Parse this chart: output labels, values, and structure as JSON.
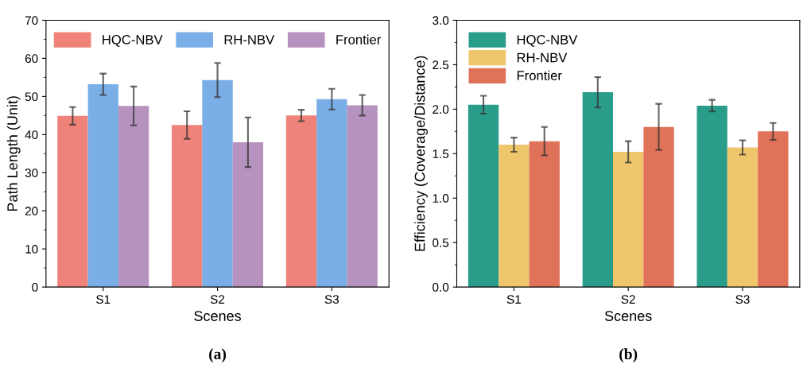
{
  "chart_data": [
    {
      "type": "bar",
      "xlabel": "Scenes",
      "ylabel": "Path Length (Unit)",
      "categories": [
        "S1",
        "S2",
        "S3"
      ],
      "ylim": [
        0,
        70
      ],
      "yticks": [
        0,
        10,
        20,
        30,
        40,
        50,
        60,
        70
      ],
      "legend": "top",
      "annotations": [
        "(a)"
      ],
      "series": [
        {
          "name": "HQC-NBV",
          "color": "#ef8379",
          "values": [
            44.9,
            42.5,
            45.0
          ],
          "errors": [
            2.3,
            3.6,
            1.5
          ]
        },
        {
          "name": "RH-NBV",
          "color": "#7aaee6",
          "values": [
            53.2,
            54.3,
            49.3
          ],
          "errors": [
            2.8,
            4.5,
            2.7
          ]
        },
        {
          "name": "Frontier",
          "color": "#b692be",
          "values": [
            47.5,
            38.0,
            47.7
          ],
          "errors": [
            5.1,
            6.5,
            2.7
          ]
        }
      ]
    },
    {
      "type": "bar",
      "xlabel": "Scenes",
      "ylabel": "Efficiency (Coverage/Distance)",
      "categories": [
        "S1",
        "S2",
        "S3"
      ],
      "ylim": [
        0,
        3.0
      ],
      "yticks": [
        {
          "value": 0,
          "label": "0.0"
        },
        0.5,
        {
          "value": 1,
          "label": "1.0"
        },
        1.5,
        {
          "value": 2,
          "label": "2.0"
        },
        2.5,
        {
          "value": 3,
          "label": "3.0"
        }
      ],
      "legend": "top left",
      "annotations": [
        "(b)"
      ],
      "series": [
        {
          "name": "HQC-NBV",
          "color": "#2a9d8a",
          "values": [
            2.05,
            2.19,
            2.04
          ],
          "errors": [
            0.1,
            0.17,
            0.065
          ]
        },
        {
          "name": "RH-NBV",
          "color": "#efc66b",
          "values": [
            1.6,
            1.52,
            1.57
          ],
          "errors": [
            0.08,
            0.12,
            0.08
          ]
        },
        {
          "name": "Frontier",
          "color": "#e0725a",
          "values": [
            1.64,
            1.8,
            1.75
          ],
          "errors": [
            0.16,
            0.26,
            0.095
          ]
        }
      ]
    }
  ]
}
